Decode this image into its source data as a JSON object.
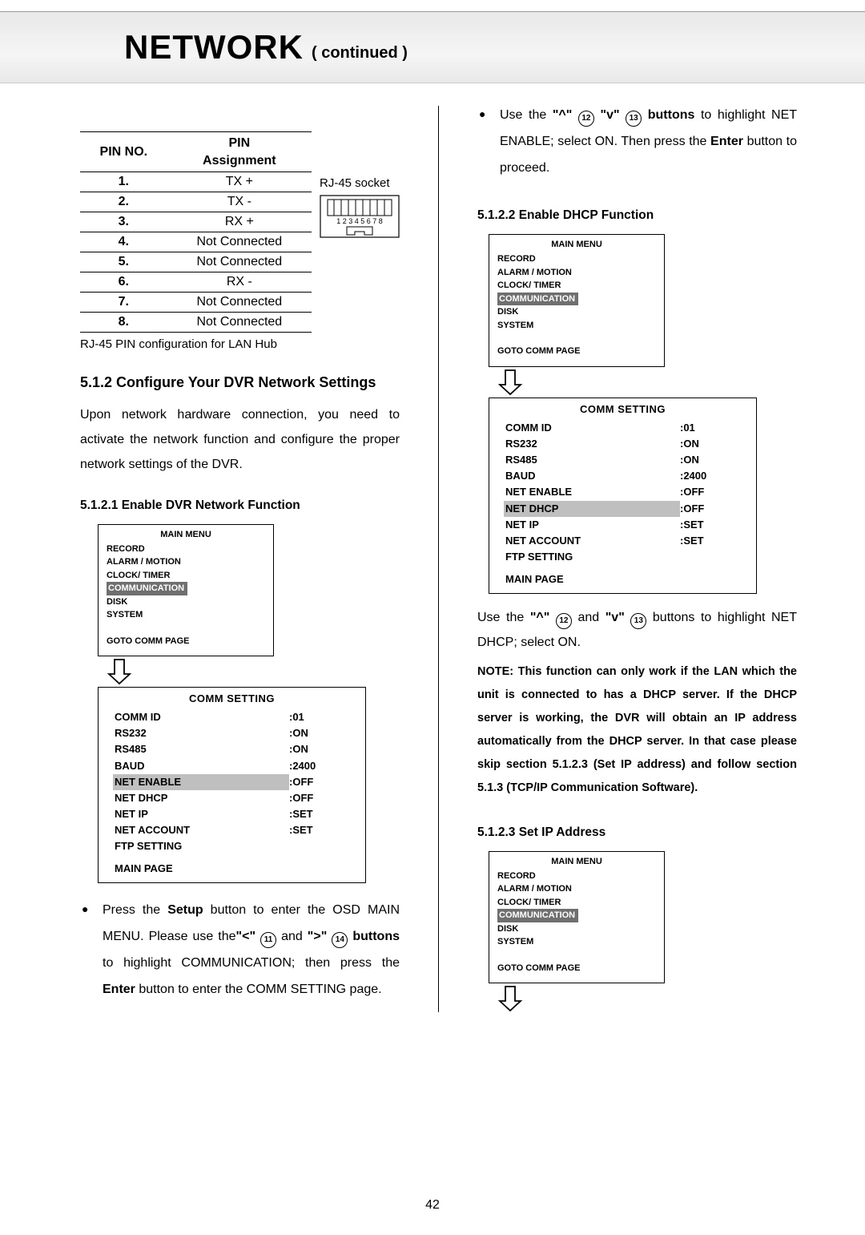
{
  "header": {
    "main": "NETWORK",
    "suffix": "( continued )"
  },
  "pin_table": {
    "header_left": "PIN NO.",
    "header_right": "PIN\nAssignment",
    "rows": [
      {
        "no": "1.",
        "val": "TX +"
      },
      {
        "no": "2.",
        "val": "TX -"
      },
      {
        "no": "3.",
        "val": "RX +"
      },
      {
        "no": "4.",
        "val": "Not Connected"
      },
      {
        "no": "5.",
        "val": "Not Connected"
      },
      {
        "no": "6.",
        "val": "RX -"
      },
      {
        "no": "7.",
        "val": "Not Connected"
      },
      {
        "no": "8.",
        "val": "Not Connected"
      }
    ],
    "socket_label": "RJ-45 socket",
    "socket_digits": "1 2 3 4 5 6 7 8",
    "caption": "RJ-45 PIN configuration for LAN Hub"
  },
  "sec_512_title": "5.1.2 Configure Your DVR Network Settings",
  "sec_512_body": "Upon network hardware connection, you need to activate the network function and configure the proper network settings of the DVR.",
  "sec_5121_title": "5.1.2.1 Enable DVR Network Function",
  "main_menu": {
    "title": "MAIN  MENU",
    "items": [
      "RECORD",
      "ALARM / MOTION",
      "CLOCK/ TIMER"
    ],
    "selected": "COMMUNICATION",
    "items2": [
      "DISK",
      "SYSTEM"
    ],
    "goto": "GOTO COMM PAGE"
  },
  "comm1": {
    "title": "COMM SETTING",
    "rows": [
      {
        "k": "COMM ID",
        "v": ":01"
      },
      {
        "k": "RS232",
        "v": ":ON"
      },
      {
        "k": "RS485",
        "v": ":ON"
      },
      {
        "k": "BAUD",
        "v": ":2400"
      },
      {
        "k": "NET ENABLE",
        "v": ":OFF",
        "hl": true
      },
      {
        "k": "NET DHCP",
        "v": ":OFF"
      },
      {
        "k": "NET IP",
        "v": ":SET"
      },
      {
        "k": "NET ACCOUNT",
        "v": ":SET"
      },
      {
        "k": "FTP SETTING",
        "v": ""
      }
    ],
    "main": "MAIN PAGE"
  },
  "bul_setup_parts": [
    "Press the ",
    "Setup",
    " button to enter the OSD MAIN MENU. Please use the",
    "\"<\"",
    " ",
    "11",
    " and   ",
    "\">\"",
    " ",
    "14",
    " ",
    "buttons",
    " to highlight COMMUNICATION; then press the ",
    "Enter",
    " button to enter the COMM SETTING page."
  ],
  "bul_up_parts": [
    "Use  the  ",
    "\"^\"",
    " ",
    "12",
    " ",
    "\"v\"",
    " ",
    "13",
    " ",
    "buttons",
    " to highlight NET ENABLE; select ON. Then press the ",
    "Enter",
    " button to proceed."
  ],
  "sec_5122_title": "5.1.2.2 Enable DHCP Function",
  "comm2": {
    "title": "COMM SETTING",
    "rows": [
      {
        "k": "COMM ID",
        "v": ":01"
      },
      {
        "k": "RS232",
        "v": ":ON"
      },
      {
        "k": "RS485",
        "v": ":ON"
      },
      {
        "k": "BAUD",
        "v": ":2400"
      },
      {
        "k": "NET ENABLE",
        "v": ":OFF"
      },
      {
        "k": "NET DHCP",
        "v": ":OFF",
        "hl": true
      },
      {
        "k": "NET IP",
        "v": ":SET"
      },
      {
        "k": "NET ACCOUNT",
        "v": ":SET"
      },
      {
        "k": "FTP SETTING",
        "v": ""
      }
    ],
    "main": "MAIN PAGE"
  },
  "use_updown_parts": [
    "Use the ",
    "\"^\"",
    " ",
    "12",
    " and ",
    "\"v\"",
    " ",
    "13",
    " buttons to highlight NET DHCP; select ON."
  ],
  "note_text": "NOTE: This function can only work if the LAN which the unit is connected to has a DHCP server. If the DHCP server is working, the DVR will obtain an IP address automatically from the DHCP server. In that case please skip section 5.1.2.3 (Set IP address) and follow section 5.1.3 (TCP/IP Communication Software).",
  "sec_5123_title": "5.1.2.3 Set IP Address",
  "page_number": "42",
  "colors": {
    "menu_sel_bg": "#6f6f6f",
    "comm_hl_bg": "#bfbfbf",
    "header_band_bg": "#ececec"
  }
}
